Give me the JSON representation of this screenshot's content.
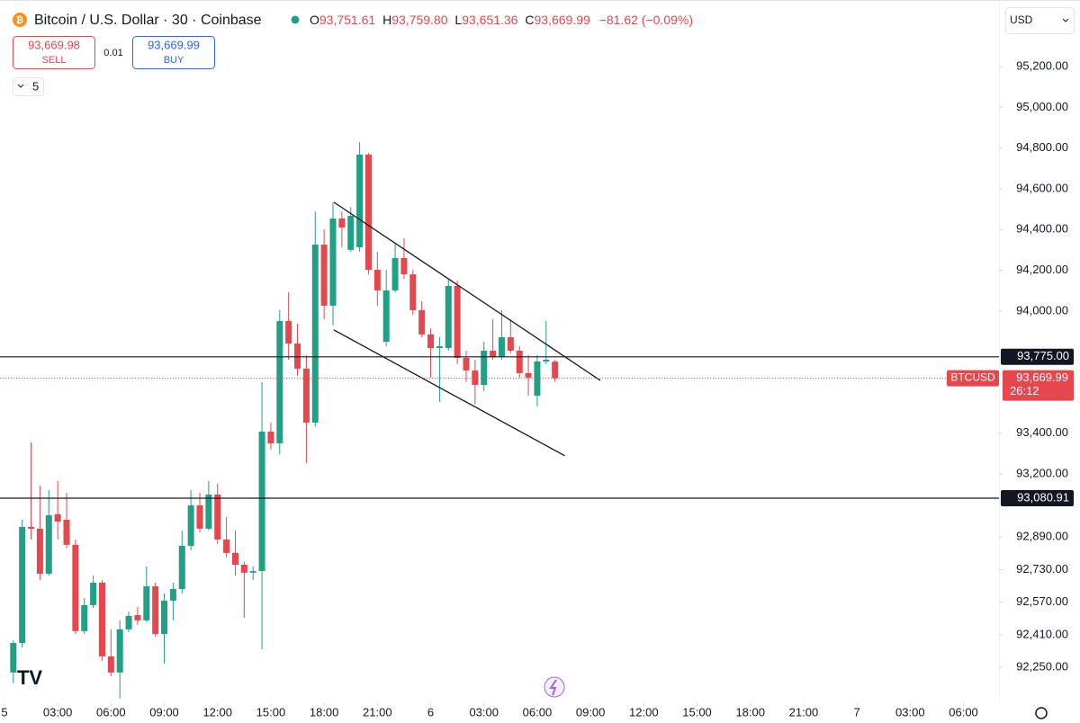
{
  "chart_data": {
    "type": "candlestick",
    "title": "Bitcoin / U.S. Dollar · 30 · Coinbase",
    "ohlc_legend": [
      {
        "key": "O",
        "text": "93,751.61"
      },
      {
        "key": "H",
        "text": "93,759.80"
      },
      {
        "key": "L",
        "text": "93,651.36"
      },
      {
        "key": "C",
        "text": "93,669.99"
      }
    ],
    "change_text": "−81.62 (−0.09%)",
    "sell": {
      "price": "93,669.98",
      "label": "SELL"
    },
    "spread": "0.01",
    "buy": {
      "price": "93,669.99",
      "label": "BUY"
    },
    "interval_menu": "5",
    "currency_menu": "USD",
    "up_color": "#22a086",
    "down_color": "#e5474d",
    "x": [
      1,
      2,
      3,
      4,
      5,
      6,
      7,
      8,
      9,
      10,
      11,
      12,
      13,
      14,
      15,
      16,
      17,
      18,
      19,
      20,
      21,
      22,
      23,
      24,
      25,
      26,
      27,
      28,
      29,
      30,
      31,
      32,
      33,
      34,
      35,
      36,
      37,
      38,
      39,
      40,
      41,
      42,
      43,
      44,
      45,
      46,
      47,
      48,
      49,
      50,
      51,
      52,
      53,
      54,
      55,
      56,
      57,
      58,
      59,
      60,
      61,
      62
    ],
    "open": [
      92225,
      92370,
      92940,
      92931,
      92710,
      93002,
      92975,
      92852,
      92428,
      92556,
      92666,
      92304,
      92225,
      92437,
      92507,
      92481,
      92648,
      92414,
      92578,
      92635,
      92847,
      93046,
      92931,
      93099,
      92878,
      92812,
      92754,
      92715,
      92723,
      93408,
      93350,
      93951,
      93840,
      93717,
      93452,
      94326,
      94026,
      94454,
      94300,
      94313,
      94768,
      94202,
      93849,
      94101,
      94260,
      94180,
      94004,
      93885,
      93818,
      93818,
      94123,
      93770,
      93708,
      93637,
      93805,
      93774,
      93871,
      93805,
      93695,
      93584,
      93752,
      93751.61
    ],
    "high": [
      92384,
      92975,
      93355,
      93143,
      93121,
      93165,
      93108,
      92878,
      92591,
      92701,
      92679,
      92437,
      92481,
      92525,
      92547,
      92746,
      92666,
      92613,
      92666,
      92922,
      93121,
      93108,
      93165,
      93152,
      92988,
      92922,
      92768,
      92746,
      93651,
      93452,
      94004,
      94092,
      93938,
      93783,
      94489,
      94401,
      94534,
      94489,
      94511,
      94829,
      94776,
      94291,
      94202,
      94335,
      94357,
      94202,
      94048,
      93915,
      93871,
      94158,
      94149,
      93805,
      93761,
      93849,
      93960,
      94004,
      93960,
      93827,
      93783,
      93783,
      93951,
      93759.8
    ],
    "low": [
      92172,
      92348,
      92878,
      92679,
      92701,
      92878,
      92834,
      92414,
      92414,
      92542,
      92282,
      92207,
      92097,
      92423,
      92459,
      92472,
      92401,
      92269,
      92481,
      92613,
      92825,
      92913,
      92922,
      92856,
      92790,
      92701,
      92494,
      92679,
      92339,
      93320,
      93297,
      93761,
      93681,
      93253,
      93430,
      93960,
      93929,
      94313,
      94291,
      94291,
      94180,
      94026,
      93827,
      94092,
      94158,
      93982,
      93871,
      93673,
      93553,
      93805,
      93739,
      93651,
      93540,
      93606,
      93761,
      93761,
      93792,
      93673,
      93584,
      93531,
      93739,
      93651.36
    ],
    "close": [
      92370,
      92940,
      92931,
      92710,
      92997,
      92966,
      92852,
      92428,
      92556,
      92666,
      92304,
      92225,
      92437,
      92503,
      92481,
      92648,
      92414,
      92578,
      92635,
      92847,
      93046,
      92931,
      93099,
      92878,
      92812,
      92754,
      92715,
      92723,
      93408,
      93350,
      93951,
      93840,
      93717,
      93452,
      94326,
      94026,
      94454,
      94410,
      94467,
      94768,
      94202,
      94101,
      94101,
      94260,
      94180,
      94004,
      93885,
      93818,
      93827,
      94123,
      93770,
      93708,
      93637,
      93805,
      93774,
      93871,
      93805,
      93695,
      93673,
      93752,
      93761,
      93669.99
    ],
    "xlim": [
      -0.5,
      112
    ],
    "xticks": [
      {
        "value": 0,
        "label": "5"
      },
      {
        "value": 6,
        "label": "03:00"
      },
      {
        "value": 12,
        "label": "06:00"
      },
      {
        "value": 18,
        "label": "09:00"
      },
      {
        "value": 24,
        "label": "12:00"
      },
      {
        "value": 30,
        "label": "15:00"
      },
      {
        "value": 36,
        "label": "18:00"
      },
      {
        "value": 42,
        "label": "21:00"
      },
      {
        "value": 48,
        "label": "6"
      },
      {
        "value": 54,
        "label": "03:00"
      },
      {
        "value": 60,
        "label": "06:00"
      },
      {
        "value": 66,
        "label": "09:00"
      },
      {
        "value": 72,
        "label": "12:00"
      },
      {
        "value": 78,
        "label": "15:00"
      },
      {
        "value": 84,
        "label": "18:00"
      },
      {
        "value": 90,
        "label": "21:00"
      },
      {
        "value": 96,
        "label": "7"
      },
      {
        "value": 102,
        "label": "03:00"
      },
      {
        "value": 108,
        "label": "06:00"
      }
    ],
    "ylim": [
      92083,
      95527
    ],
    "yticks": [
      {
        "value": 92250,
        "label": "92,250.00"
      },
      {
        "value": 92410,
        "label": "92,410.00"
      },
      {
        "value": 92570,
        "label": "92,570.00"
      },
      {
        "value": 92730,
        "label": "92,730.00"
      },
      {
        "value": 92890,
        "label": "92,890.00"
      },
      {
        "value": 93200,
        "label": "93,200.00"
      },
      {
        "value": 93400,
        "label": "93,400.00"
      },
      {
        "value": 94000,
        "label": "94,000.00"
      },
      {
        "value": 94200,
        "label": "94,200.00"
      },
      {
        "value": 94400,
        "label": "94,400.00"
      },
      {
        "value": 94600,
        "label": "94,600.00"
      },
      {
        "value": 94800,
        "label": "94,800.00"
      },
      {
        "value": 95000,
        "label": "95,000.00"
      },
      {
        "value": 95200,
        "label": "95,200.00"
      }
    ],
    "levels": [
      {
        "value": 93775,
        "label": "93,775.00"
      },
      {
        "value": 93080.91,
        "label": "93,080.91"
      }
    ],
    "price_line": {
      "value": 93669.99,
      "label": "93,669.99",
      "symbol": "BTCUSD",
      "countdown": "26:12"
    },
    "trendlines": [
      {
        "x": [
          37.1,
          67.1
        ],
        "y": [
          94534,
          93659
        ]
      },
      {
        "x": [
          37.1,
          63.1
        ],
        "y": [
          93907,
          93289
        ]
      }
    ]
  }
}
